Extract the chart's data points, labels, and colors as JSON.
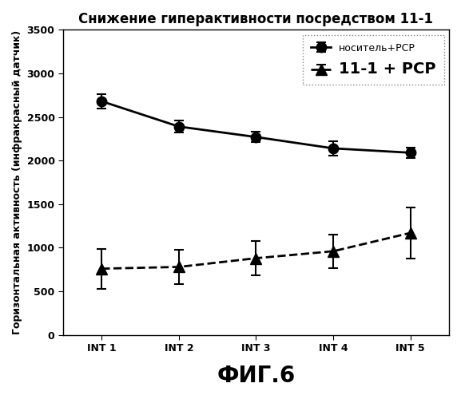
{
  "title": "Снижение гиперактивности посредством 11-1",
  "xlabel": "ФИГ.6",
  "ylabel": "Горизонтальная активность (инфракрасный датчик)",
  "x_labels": [
    "INT 1",
    "INT 2",
    "INT 3",
    "INT 4",
    "INT 5"
  ],
  "x_values": [
    1,
    2,
    3,
    4,
    5
  ],
  "series1_label": "носитель+РСР",
  "series1_y": [
    2680,
    2390,
    2270,
    2140,
    2090
  ],
  "series1_yerr": [
    80,
    70,
    60,
    80,
    60
  ],
  "series1_color": "#000000",
  "series1_linestyle": "-",
  "series1_marker": "o",
  "series2_label": "11-1 + РСР",
  "series2_y": [
    760,
    780,
    880,
    960,
    1170
  ],
  "series2_yerr": [
    230,
    200,
    200,
    190,
    290
  ],
  "series2_color": "#000000",
  "series2_linestyle": "--",
  "series2_marker": "^",
  "ylim": [
    0,
    3500
  ],
  "yticks": [
    0,
    500,
    1000,
    1500,
    2000,
    2500,
    3000,
    3500
  ],
  "background_color": "#ffffff",
  "plot_bg_color": "#ffffff",
  "title_fontsize": 12,
  "axis_label_fontsize": 9,
  "tick_fontsize": 9,
  "legend_fontsize_1": 9,
  "legend_fontsize_2": 14,
  "xlabel_fontsize": 20
}
